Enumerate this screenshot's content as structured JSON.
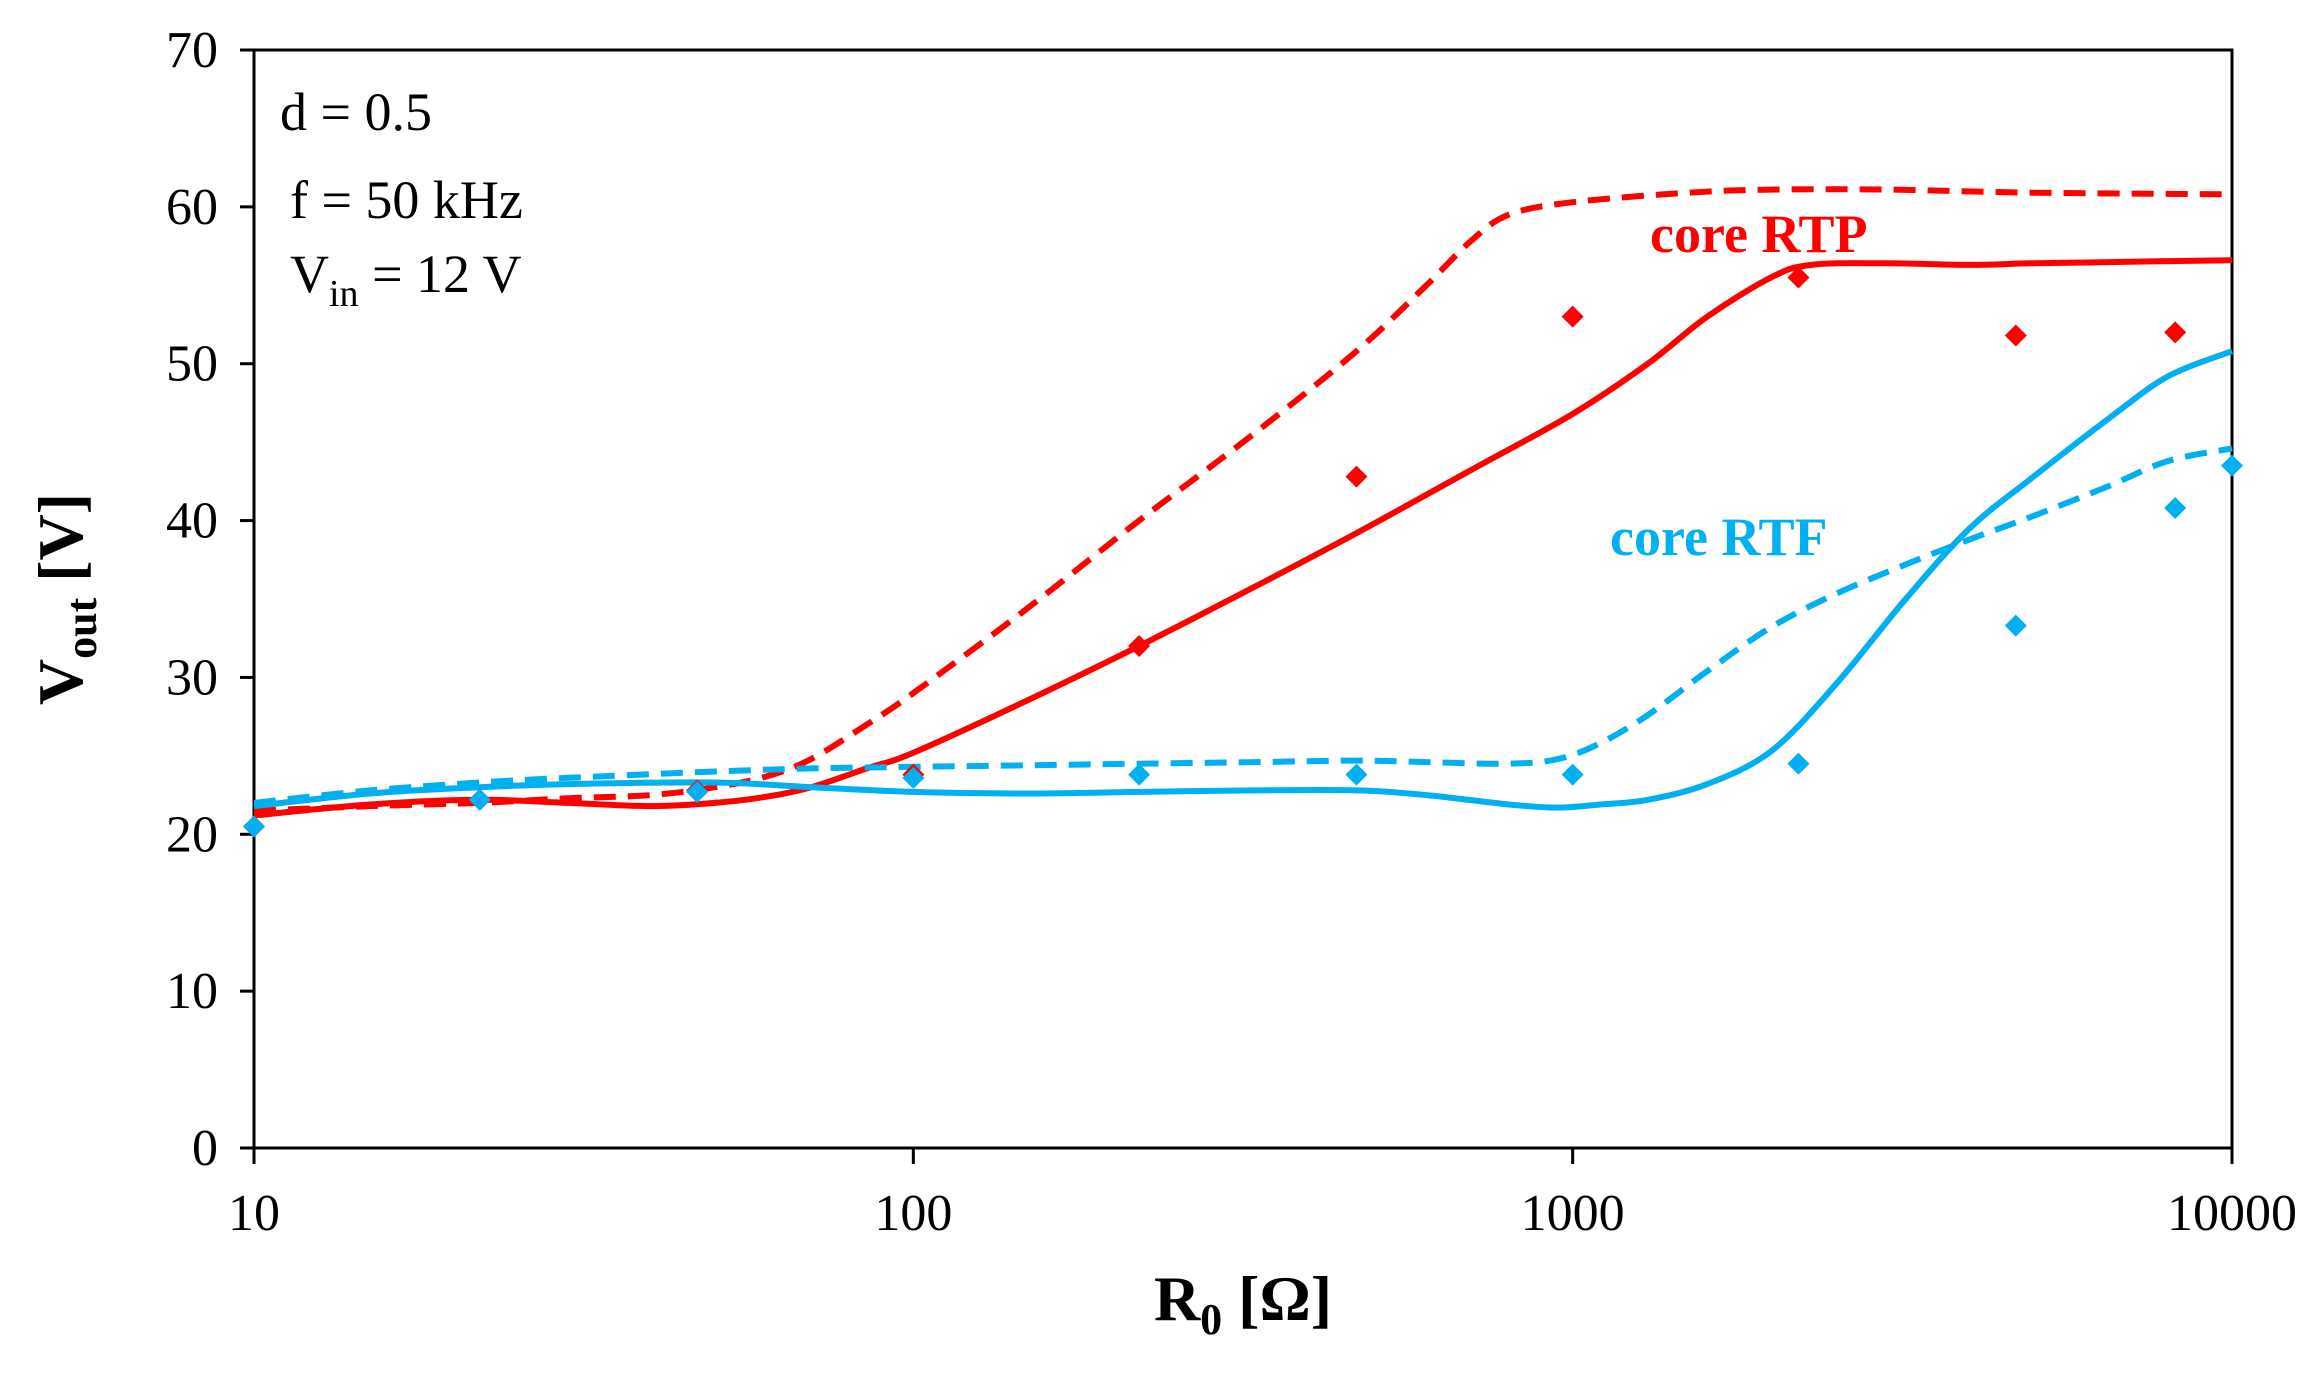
{
  "chart_data": {
    "type": "line",
    "x_scale": "log",
    "xlabel": {
      "main": "R",
      "sub": "0",
      "unit": " [Ω]"
    },
    "ylabel": {
      "main": "V",
      "sub": "out",
      "unit": " [V]"
    },
    "xlim": [
      10,
      10000
    ],
    "ylim": [
      0,
      70
    ],
    "xticks": [
      10,
      100,
      1000,
      10000
    ],
    "yticks": [
      0,
      10,
      20,
      30,
      40,
      50,
      60,
      70
    ],
    "grid": false,
    "annotations": [
      {
        "text": "d = 0.5"
      },
      {
        "text": "f = 50 kHz"
      },
      {
        "main": "V",
        "sub": "in",
        "rest": " = 12 V"
      }
    ],
    "series_labels": [
      {
        "text": "core RTP",
        "color": "#ff0000"
      },
      {
        "text": "core RTF",
        "color": "#00b0f0"
      }
    ],
    "series": [
      {
        "name": "core RTP measured",
        "style": "marker",
        "color": "#ff0000",
        "x": [
          10,
          22,
          47,
          100,
          220,
          470,
          1000,
          2200,
          4700,
          8200
        ],
        "y": [
          20.5,
          22.2,
          22.8,
          23.8,
          32.0,
          42.8,
          53.0,
          55.5,
          51.8,
          52.0
        ]
      },
      {
        "name": "core RTP simulation (solid)",
        "style": "solid",
        "color": "#ff0000",
        "x": [
          10,
          15,
          22,
          30,
          40,
          50,
          60,
          70,
          85,
          100,
          150,
          220,
          330,
          470,
          700,
          1000,
          1300,
          1600,
          2000,
          2300,
          3000,
          4000,
          5000,
          7000,
          10000
        ],
        "y": [
          21.2,
          21.9,
          22.2,
          22.0,
          21.8,
          22.0,
          22.4,
          23.0,
          24.2,
          25.2,
          28.6,
          32.0,
          35.8,
          39.2,
          43.2,
          46.8,
          50.0,
          53.0,
          55.5,
          56.3,
          56.4,
          56.3,
          56.4,
          56.5,
          56.6
        ]
      },
      {
        "name": "core RTP simulation (dashed)",
        "style": "dashed",
        "color": "#ff0000",
        "x": [
          10,
          15,
          22,
          30,
          40,
          50,
          60,
          70,
          85,
          100,
          150,
          220,
          330,
          470,
          600,
          700,
          800,
          1000,
          1500,
          2000,
          3000,
          5000,
          10000
        ],
        "y": [
          21.5,
          21.8,
          22.0,
          22.3,
          22.5,
          23.0,
          23.7,
          24.8,
          27.0,
          29.0,
          34.5,
          40.0,
          45.6,
          50.8,
          55.0,
          57.8,
          59.5,
          60.3,
          60.9,
          61.1,
          61.1,
          60.9,
          60.8
        ]
      },
      {
        "name": "core RTF measured",
        "style": "marker",
        "color": "#00b0f0",
        "x": [
          10,
          22,
          47,
          100,
          220,
          470,
          1000,
          2200,
          4700,
          8200,
          10000
        ],
        "y": [
          20.5,
          22.2,
          22.7,
          23.6,
          23.8,
          23.8,
          23.8,
          24.5,
          33.3,
          40.8,
          43.5
        ]
      },
      {
        "name": "core RTF simulation (solid)",
        "style": "solid",
        "color": "#00b0f0",
        "x": [
          10,
          15,
          22,
          30,
          50,
          70,
          100,
          150,
          220,
          330,
          470,
          600,
          800,
          950,
          1100,
          1300,
          1600,
          2000,
          2500,
          3200,
          4000,
          5000,
          6500,
          8000,
          10000
        ],
        "y": [
          21.8,
          22.6,
          23.0,
          23.2,
          23.3,
          23.0,
          22.7,
          22.6,
          22.7,
          22.8,
          22.8,
          22.5,
          21.9,
          21.7,
          21.9,
          22.2,
          23.2,
          25.3,
          29.5,
          35.0,
          39.5,
          42.8,
          46.5,
          49.2,
          50.8
        ]
      },
      {
        "name": "core RTF simulation (dashed)",
        "style": "dashed",
        "color": "#00b0f0",
        "x": [
          10,
          15,
          22,
          30,
          50,
          70,
          100,
          150,
          220,
          330,
          470,
          600,
          800,
          950,
          1100,
          1300,
          1600,
          2000,
          2500,
          3200,
          4000,
          5000,
          6500,
          8000,
          10000
        ],
        "y": [
          22.0,
          22.8,
          23.3,
          23.6,
          24.0,
          24.2,
          24.3,
          24.4,
          24.5,
          24.6,
          24.7,
          24.6,
          24.5,
          24.8,
          25.8,
          27.6,
          30.4,
          33.2,
          35.3,
          37.2,
          38.8,
          40.3,
          42.2,
          43.8,
          44.6
        ]
      }
    ]
  }
}
